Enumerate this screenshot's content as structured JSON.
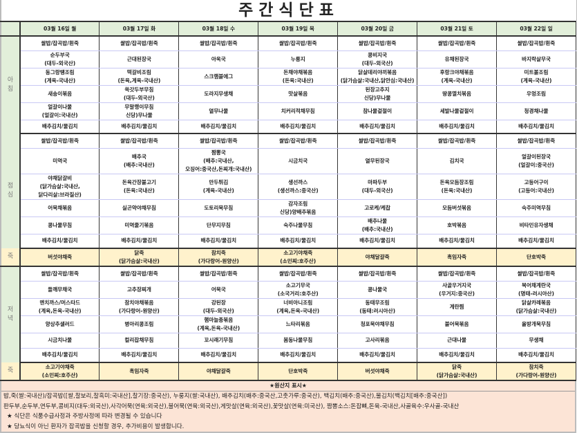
{
  "title": "주간식단표",
  "days": [
    "03월 16일 월",
    "03월 17일 화",
    "03월 18일 수",
    "03월 19일 목",
    "03월 20일 금",
    "03월 21일 토",
    "03월 22일 일"
  ],
  "sections": [
    {
      "label": "아\n침",
      "kind": "meal",
      "rows": [
        [
          "쌀밥/잡곡밥/흰죽",
          "쌀밥/잡곡밥/흰죽",
          "쌀밥/잡곡밥/흰죽",
          "쌀밥/잡곡밥/흰죽",
          "쌀밥/잡곡밥/흰죽",
          "쌀밥/잡곡밥/흰죽",
          "쌀밥/잡곡밥/흰죽"
        ],
        [
          "순두부국\n(대두-외국산)",
          "근대된장국",
          "아욱국",
          "누룽지",
          "콩비지국\n(대두-외국산)",
          "유채된장국",
          "바지락살무국"
        ],
        [
          "동그랑땡조림\n(계육-국내산)",
          "떡갈비조림\n(돈육,계육-국내산)",
          "스크램블에그",
          "돈채야채볶음\n(돈육:국내산)",
          "닭살데리야끼볶음\n(닭가슴살:국내산,닭안심:국내산)",
          "후랑크야채볶음\n(계육-국내산)",
          "미트볼조림\n(계육-국내산)"
        ],
        [
          "새송이볶음",
          "쑥갓두부무침\n(대두-외국산)",
          "도라지무생채",
          "맛살볶음",
          "된장고추지\n신당)무나물",
          "땅콩멸치볶음",
          "우엉조림"
        ],
        [
          "얼갈이나물\n(얼갈이:국내산)",
          "무말랭이무침\n신당)무나물",
          "열무나물",
          "치커리적채무침",
          "참나물겉절이",
          "세발나물겉절이",
          "청경채나물"
        ],
        [
          "배추김치/물김치",
          "배추김치/물김치",
          "배추김치/물김치",
          "배추김치/물김치",
          "배추김치/물김치",
          "배추김치/물김치",
          "배추김치/물김치"
        ]
      ]
    },
    {
      "label": "점\n심",
      "kind": "meal",
      "rows": [
        [
          "쌀밥/잡곡밥/흰죽",
          "쌀밥/잡곡밥/흰죽",
          "쌀밥/잡곡밥/흰죽",
          "쌀밥/잡곡밥/흰죽",
          "쌀밥/잡곡밥/흰죽",
          "쌀밥/잡곡밥/흰죽",
          "쌀밥/잡곡밥/흰죽"
        ],
        [
          "미역국",
          "배추국\n(배추:국내산)",
          "짬뽕국\n(배추:국내산,\n오징어:중국산,돈찌개:국내산)",
          "시금치국",
          "열무된장국",
          "김치국",
          "얼갈이된장국\n(얼갈이:중국산)"
        ],
        [
          "야채닭갈비\n(닭가슴살:국내산,\n닭다리살:브라질산)",
          "돈육간장불고기\n(돈육:국내산)",
          "만두튀김\n(계육-국내산)",
          "생선까스\n(생선까스:중국산)",
          "마파두부\n(대두-외국산)",
          "돈육모듬장조림\n(돈육:국내산)",
          "고등어구이\n(고등어:국내산)"
        ],
        [
          "어묵채볶음",
          "실곤약야채무침",
          "도토리묵무침",
          "감자조림\n신당)양배추볶음",
          "고로케/케찹",
          "모듬버섯볶음",
          "숙주미역무침"
        ],
        [
          "콩나물무침",
          "미역줄기볶음",
          "단무지무침",
          "숙주나물무침",
          "배추나물\n(배추:국내산)",
          "호박볶음",
          "비타민유자생채"
        ],
        [
          "배추김치/물김치",
          "배추김치/물김치",
          "배추김치/물김치",
          "배추김치/물김치",
          "배추김치/물김치",
          "배추김치/물김치",
          "배추김치/물김치"
        ]
      ]
    },
    {
      "label": "죽",
      "kind": "juk",
      "rows": [
        [
          "버섯야채죽",
          "닭죽\n(닭가슴살:국내산)",
          "참치죽\n(가다랑어-원양산)",
          "소고기야채죽\n(소민찌:호주산)",
          "야채달걀죽",
          "흑임자죽",
          "단호박죽"
        ]
      ]
    },
    {
      "label": "저\n녁",
      "kind": "meal",
      "rows": [
        [
          "쌀밥/잡곡밥/흰죽",
          "쌀밥/잡곡밥/흰죽",
          "쌀밥/잡곡밥/흰죽",
          "쌀밥/잡곡밥/흰죽",
          "쌀밥/잡곡밥/흰죽",
          "쌀밥/잡곡밥/흰죽",
          "쌀밥/잡곡밥/흰죽"
        ],
        [
          "들깨무채국",
          "고추장찌개",
          "어묵국",
          "소고기무국\n(소국거리:호주산)",
          "콩나물국",
          "사골우거지국\n(우거지:중국산)",
          "북어채계란국\n(명태-러시아산)"
        ],
        [
          "멘치까스/머스타드\n(계육,돈육-국내산)",
          "참치야채볶음\n(가다랑어-원양산)",
          "강된장\n(대두-외국산)",
          "너비아니조림\n(계육,돈육-국내산)",
          "동태무조림\n(동태:러시아산)",
          "계란찜",
          "닭살카레볶음\n(닭가슴살:국내산)"
        ],
        [
          "양상추샐러드",
          "병아리콩조림",
          "햄마늘종볶음\n(계육,돈육-국내산)",
          "느타리볶음",
          "청포묵야채무침",
          "불어묵볶음",
          "올방개묵무침"
        ],
        [
          "시금치나물",
          "컬리잡채무침",
          "꼬시래기무침",
          "봄동나물무침",
          "고사리볶음",
          "근대나물",
          "무생채"
        ],
        [
          "배추김치/물김치",
          "배추김치/물김치",
          "배추김치/물김치",
          "배추김치/물김치",
          "배추김치/물김치",
          "배추김치/물김치",
          "배추김치/물김치"
        ]
      ]
    },
    {
      "label": "죽",
      "kind": "juk",
      "rows": [
        [
          "소고기야채죽\n(소민찌:호주산)",
          "흑임자죽",
          "야채달걀죽",
          "단호박죽",
          "버섯야채죽",
          "닭죽\n(닭가슴살:국내산)",
          "참치죽\n(가다랑어-원양산)"
        ]
      ]
    }
  ],
  "footer": {
    "title": "★원산지 표시★",
    "origin_lines": [
      "밥,죽(쌀:국내산)/잡곡밥([쌀,찰보리,찰흑미:국내산],찰기장:중국산), 누룽지(쌀:국내산), 배추김치(배추:중국산,고춧가루:중국산), 백김치(배추:중국산),물김치(백김치[배추:중국산])",
      "판두부,순두부,연두부,콩비지(대두:외국산),사각어묵(연육:외국산),불어묵(연육:외국산),게맛살(연육:외국산),꽃맛살(연육:미국산), 짬뽕소스:돈잡뼈,돈육-국내산,사골육수:우사골-국내산"
    ],
    "notes": [
      "★ 식단은 식품수급사정과 주방사정에 따라 변경될 수 있습니다",
      "★ 당뇨식이 아닌 환자가 잡곡밥을 신청할 경우, 추가비용이 발생합니다."
    ]
  }
}
